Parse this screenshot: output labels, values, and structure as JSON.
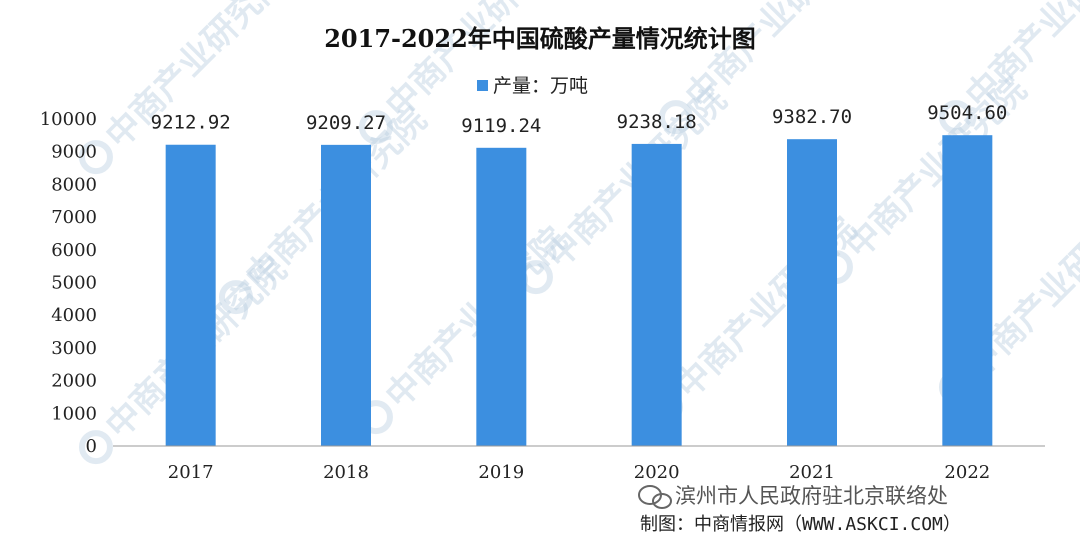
{
  "chart_data": {
    "type": "bar",
    "title": "2017-2022年中国硫酸产量情况统计图",
    "categories": [
      "2017",
      "2018",
      "2019",
      "2020",
      "2021",
      "2022"
    ],
    "series": [
      {
        "name": "产量：万吨",
        "values": [
          9212.92,
          9209.27,
          9119.24,
          9238.18,
          9382.7,
          9504.6
        ],
        "labels": [
          "9212.92",
          "9209.27",
          "9119.24",
          "9238.18",
          "9382.70",
          "9504.60"
        ]
      }
    ],
    "ylim": [
      0,
      10000
    ],
    "yticks": [
      "0",
      "1000",
      "2000",
      "3000",
      "4000",
      "5000",
      "6000",
      "7000",
      "8000",
      "9000",
      "10000"
    ],
    "legend_position": "top-center",
    "grid": false,
    "bar_color": "#3c8fe0"
  },
  "watermark": {
    "text": "中商产业研究院"
  },
  "footer": {
    "official_account": "滨州市人民政府驻北京联络处",
    "credit": "制图：中商情报网（WWW.ASKCI.COM）"
  }
}
